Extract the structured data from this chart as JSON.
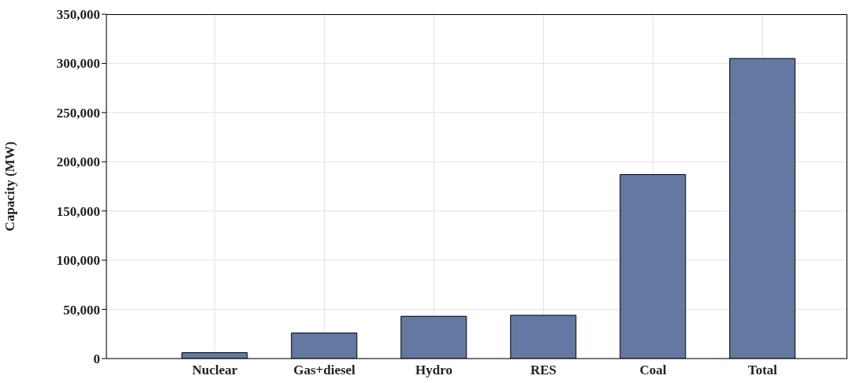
{
  "chart_data": {
    "type": "bar",
    "ylabel": "Capacity (MW)",
    "categories": [
      "Nuclear",
      "Gas+diesel",
      "Hydro",
      "RES",
      "Coal",
      "Total"
    ],
    "values": [
      6000,
      26000,
      43000,
      44000,
      187000,
      305000
    ],
    "color": "#6478a2",
    "ylim": [
      0,
      350000
    ],
    "yticks": [
      0,
      {
        "value": 50000,
        "label": "50,000"
      },
      {
        "value": 100000,
        "label": "100,000"
      },
      {
        "value": 150000,
        "label": "150,000"
      },
      {
        "value": 200000,
        "label": "200,000"
      },
      {
        "value": 250000,
        "label": "250,000"
      },
      {
        "value": 300000,
        "label": "300,000"
      },
      {
        "value": 350000,
        "label": "350,000"
      }
    ],
    "grid": true
  }
}
